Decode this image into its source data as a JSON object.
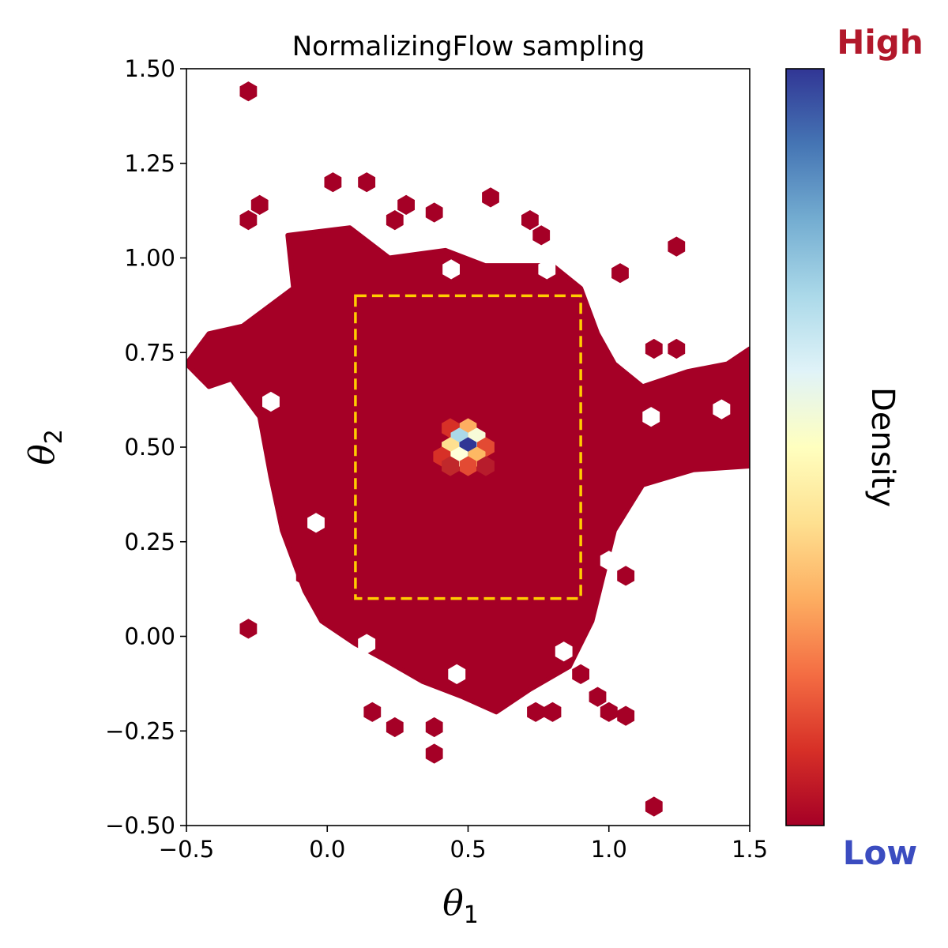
{
  "chart_data": {
    "type": "heatmap",
    "subtype": "hexbin",
    "title": "NormalizingFlow sampling",
    "xlabel": {
      "symbol": "θ",
      "subscript": "1"
    },
    "ylabel": {
      "symbol": "θ",
      "subscript": "2"
    },
    "xlim": [
      -0.5,
      1.5
    ],
    "ylim": [
      -0.5,
      1.5
    ],
    "xticks": [
      -0.5,
      0.0,
      0.5,
      1.0,
      1.5
    ],
    "xtick_labels": [
      "−0.5",
      "0.0",
      "0.5",
      "1.0",
      "1.5"
    ],
    "yticks": [
      -0.5,
      -0.25,
      0.0,
      0.25,
      0.5,
      0.75,
      1.0,
      1.25,
      1.5
    ],
    "ytick_labels": [
      "−0.50",
      "−0.25",
      "0.00",
      "0.25",
      "0.50",
      "0.75",
      "1.00",
      "1.25",
      "1.50"
    ],
    "grid": false,
    "colormap": [
      "#a50026",
      "#d73027",
      "#f46d43",
      "#fdae61",
      "#fee090",
      "#ffffbf",
      "#e0f3f8",
      "#abd9e9",
      "#74add1",
      "#4575b4",
      "#313695"
    ],
    "colorbar": {
      "label": "Density",
      "high_label": "High",
      "low_label": "Low",
      "high_color": "#b2182b",
      "low_color": "#3b4cc0"
    },
    "base_color": "#a50026",
    "rectangle": {
      "x0": 0.1,
      "x1": 0.9,
      "y0": 0.1,
      "y1": 0.9,
      "color": "#ffcc00",
      "style": "dashed"
    },
    "bulk_region": [
      [
        -0.5,
        0.72
      ],
      [
        -0.42,
        0.8
      ],
      [
        -0.3,
        0.82
      ],
      [
        -0.12,
        0.92
      ],
      [
        -0.14,
        1.06
      ],
      [
        0.08,
        1.08
      ],
      [
        0.22,
        1.0
      ],
      [
        0.42,
        1.02
      ],
      [
        0.56,
        0.98
      ],
      [
        0.8,
        0.98
      ],
      [
        0.9,
        0.92
      ],
      [
        0.96,
        0.8
      ],
      [
        1.02,
        0.72
      ],
      [
        1.12,
        0.66
      ],
      [
        1.28,
        0.7
      ],
      [
        1.42,
        0.72
      ],
      [
        1.5,
        0.76
      ],
      [
        1.5,
        0.45
      ],
      [
        1.3,
        0.44
      ],
      [
        1.12,
        0.4
      ],
      [
        1.02,
        0.28
      ],
      [
        0.98,
        0.16
      ],
      [
        0.94,
        0.04
      ],
      [
        0.86,
        -0.08
      ],
      [
        0.72,
        -0.14
      ],
      [
        0.6,
        -0.2
      ],
      [
        0.48,
        -0.16
      ],
      [
        0.34,
        -0.12
      ],
      [
        0.2,
        -0.06
      ],
      [
        0.1,
        -0.02
      ],
      [
        -0.02,
        0.04
      ],
      [
        -0.08,
        0.12
      ],
      [
        -0.16,
        0.28
      ],
      [
        -0.2,
        0.42
      ],
      [
        -0.24,
        0.58
      ],
      [
        -0.34,
        0.68
      ],
      [
        -0.42,
        0.66
      ]
    ],
    "holes": [
      [
        0.44,
        0.97
      ],
      [
        0.78,
        0.97
      ],
      [
        -0.2,
        0.62
      ],
      [
        1.4,
        0.6
      ],
      [
        1.15,
        0.58
      ],
      [
        -0.04,
        0.3
      ],
      [
        1.0,
        0.2
      ],
      [
        0.14,
        -0.02
      ],
      [
        0.46,
        -0.1
      ],
      [
        0.84,
        -0.04
      ]
    ],
    "outliers": [
      [
        -0.28,
        1.44
      ],
      [
        0.02,
        1.2
      ],
      [
        0.14,
        1.2
      ],
      [
        0.58,
        1.16
      ],
      [
        -0.24,
        1.14
      ],
      [
        -0.28,
        1.1
      ],
      [
        0.28,
        1.14
      ],
      [
        0.24,
        1.1
      ],
      [
        0.38,
        1.12
      ],
      [
        0.72,
        1.1
      ],
      [
        0.76,
        1.06
      ],
      [
        1.24,
        1.03
      ],
      [
        1.04,
        0.96
      ],
      [
        1.16,
        0.76
      ],
      [
        1.24,
        0.76
      ],
      [
        0.88,
        0.44
      ],
      [
        1.06,
        0.16
      ],
      [
        -0.28,
        0.02
      ],
      [
        -0.08,
        0.16
      ],
      [
        0.16,
        -0.2
      ],
      [
        0.24,
        -0.24
      ],
      [
        0.38,
        -0.24
      ],
      [
        0.38,
        -0.31
      ],
      [
        0.74,
        -0.2
      ],
      [
        0.8,
        -0.2
      ],
      [
        0.96,
        -0.16
      ],
      [
        1.0,
        -0.2
      ],
      [
        1.06,
        -0.21
      ],
      [
        1.16,
        -0.45
      ],
      [
        0.9,
        -0.1
      ]
    ],
    "hotspot": {
      "center": [
        0.5,
        0.5
      ],
      "cells": [
        {
          "x": 0.437,
          "y": 0.55,
          "color": "#d73027"
        },
        {
          "x": 0.5,
          "y": 0.55,
          "color": "#fdae61"
        },
        {
          "x": 0.469,
          "y": 0.525,
          "color": "#abd9e9"
        },
        {
          "x": 0.531,
          "y": 0.525,
          "color": "#f7fbd8"
        },
        {
          "x": 0.437,
          "y": 0.5,
          "color": "#fee090"
        },
        {
          "x": 0.5,
          "y": 0.5,
          "color": "#313695"
        },
        {
          "x": 0.563,
          "y": 0.5,
          "color": "#e34a33"
        },
        {
          "x": 0.469,
          "y": 0.475,
          "color": "#ffffd9"
        },
        {
          "x": 0.531,
          "y": 0.475,
          "color": "#fdb863"
        },
        {
          "x": 0.407,
          "y": 0.475,
          "color": "#d73027"
        },
        {
          "x": 0.5,
          "y": 0.45,
          "color": "#e34a33"
        },
        {
          "x": 0.437,
          "y": 0.45,
          "color": "#c0282b"
        },
        {
          "x": 0.563,
          "y": 0.45,
          "color": "#b71c2c"
        }
      ]
    }
  }
}
